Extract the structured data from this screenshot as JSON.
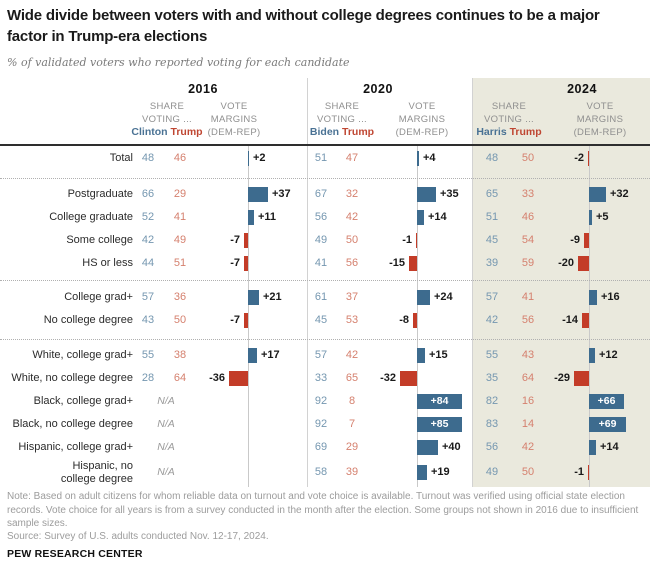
{
  "title": "Wide divide between voters with and without college degrees continues to be a major factor in Trump-era elections",
  "subtitle": "% of validated voters who reported voting for each candidate",
  "labels": {
    "share1": "SHARE",
    "share2": "VOTING ...",
    "vote1": "VOTE",
    "vote2": "MARGINS",
    "vote3": "(DEM-REP)",
    "na": "N/A"
  },
  "years": [
    {
      "label": "2016",
      "dem_candidate": "Clinton",
      "rep_candidate": "Trump"
    },
    {
      "label": "2020",
      "dem_candidate": "Biden",
      "rep_candidate": "Trump"
    },
    {
      "label": "2024",
      "dem_candidate": "Harris",
      "rep_candidate": "Trump"
    }
  ],
  "colors": {
    "dem_name": "#4a7294",
    "rep_name": "#bf4632",
    "dem_value": "#7597b0",
    "rep_value": "#d5806e",
    "bar_blue": "#3d6b8e",
    "bar_red": "#c33c28",
    "shade_2024": "#eae9dd"
  },
  "chart_data": {
    "type": "table",
    "title": "Wide divide between voters with and without college degrees continues to be a major factor in Trump-era elections",
    "subtitle": "% of validated voters who reported voting for each candidate",
    "years": [
      "2016",
      "2020",
      "2024"
    ],
    "columns_per_year": [
      "Dem share",
      "Rep share",
      "Vote margin (DEM-REP)"
    ],
    "highlighted_year": "2024",
    "groups": [
      {
        "rows": [
          {
            "label": "Total",
            "y2016": {
              "dem": 48,
              "rep": 46,
              "margin": 2
            },
            "y2020": {
              "dem": 51,
              "rep": 47,
              "margin": 4
            },
            "y2024": {
              "dem": 48,
              "rep": 50,
              "margin": -2
            }
          }
        ]
      },
      {
        "rows": [
          {
            "label": "Postgraduate",
            "y2016": {
              "dem": 66,
              "rep": 29,
              "margin": 37
            },
            "y2020": {
              "dem": 67,
              "rep": 32,
              "margin": 35
            },
            "y2024": {
              "dem": 65,
              "rep": 33,
              "margin": 32
            }
          },
          {
            "label": "College graduate",
            "y2016": {
              "dem": 52,
              "rep": 41,
              "margin": 11
            },
            "y2020": {
              "dem": 56,
              "rep": 42,
              "margin": 14
            },
            "y2024": {
              "dem": 51,
              "rep": 46,
              "margin": 5
            }
          },
          {
            "label": "Some college",
            "y2016": {
              "dem": 42,
              "rep": 49,
              "margin": -7
            },
            "y2020": {
              "dem": 49,
              "rep": 50,
              "margin": -1
            },
            "y2024": {
              "dem": 45,
              "rep": 54,
              "margin": -9
            }
          },
          {
            "label": "HS or less",
            "y2016": {
              "dem": 44,
              "rep": 51,
              "margin": -7
            },
            "y2020": {
              "dem": 41,
              "rep": 56,
              "margin": -15
            },
            "y2024": {
              "dem": 39,
              "rep": 59,
              "margin": -20
            }
          }
        ]
      },
      {
        "rows": [
          {
            "label": "College grad+",
            "y2016": {
              "dem": 57,
              "rep": 36,
              "margin": 21
            },
            "y2020": {
              "dem": 61,
              "rep": 37,
              "margin": 24
            },
            "y2024": {
              "dem": 57,
              "rep": 41,
              "margin": 16
            }
          },
          {
            "label": "No college degree",
            "y2016": {
              "dem": 43,
              "rep": 50,
              "margin": -7
            },
            "y2020": {
              "dem": 45,
              "rep": 53,
              "margin": -8
            },
            "y2024": {
              "dem": 42,
              "rep": 56,
              "margin": -14
            }
          }
        ]
      },
      {
        "rows": [
          {
            "label": "White, college grad+",
            "y2016": {
              "dem": 55,
              "rep": 38,
              "margin": 17
            },
            "y2020": {
              "dem": 57,
              "rep": 42,
              "margin": 15
            },
            "y2024": {
              "dem": 55,
              "rep": 43,
              "margin": 12
            }
          },
          {
            "label": "White, no college degree",
            "y2016": {
              "dem": 28,
              "rep": 64,
              "margin": -36
            },
            "y2020": {
              "dem": 33,
              "rep": 65,
              "margin": -32
            },
            "y2024": {
              "dem": 35,
              "rep": 64,
              "margin": -29
            }
          },
          {
            "label": "Black, college grad+",
            "y2016": {
              "na": true
            },
            "y2020": {
              "dem": 92,
              "rep": 8,
              "margin": 84
            },
            "y2024": {
              "dem": 82,
              "rep": 16,
              "margin": 66
            }
          },
          {
            "label": "Black, no college degree",
            "y2016": {
              "na": true
            },
            "y2020": {
              "dem": 92,
              "rep": 7,
              "margin": 85
            },
            "y2024": {
              "dem": 83,
              "rep": 14,
              "margin": 69
            }
          },
          {
            "label": "Hispanic, college grad+",
            "y2016": {
              "na": true
            },
            "y2020": {
              "dem": 69,
              "rep": 29,
              "margin": 40
            },
            "y2024": {
              "dem": 56,
              "rep": 42,
              "margin": 14
            }
          },
          {
            "label": "Hispanic, no college degree",
            "wrap": true,
            "y2016": {
              "na": true
            },
            "y2020": {
              "dem": 58,
              "rep": 39,
              "margin": 19
            },
            "y2024": {
              "dem": 49,
              "rep": 50,
              "margin": -1
            }
          }
        ]
      }
    ]
  },
  "footer": {
    "note": "Note: Based on adult citizens for whom reliable data on turnout and vote choice is available. Turnout was verified using official state election records. Vote choice for all years is from a survey conducted in the month after the election. Some groups not shown in 2016 due to insufficient sample sizes.",
    "source": "Source: Survey of U.S. adults conducted Nov. 12-17, 2024.",
    "brand": "PEW RESEARCH CENTER"
  }
}
